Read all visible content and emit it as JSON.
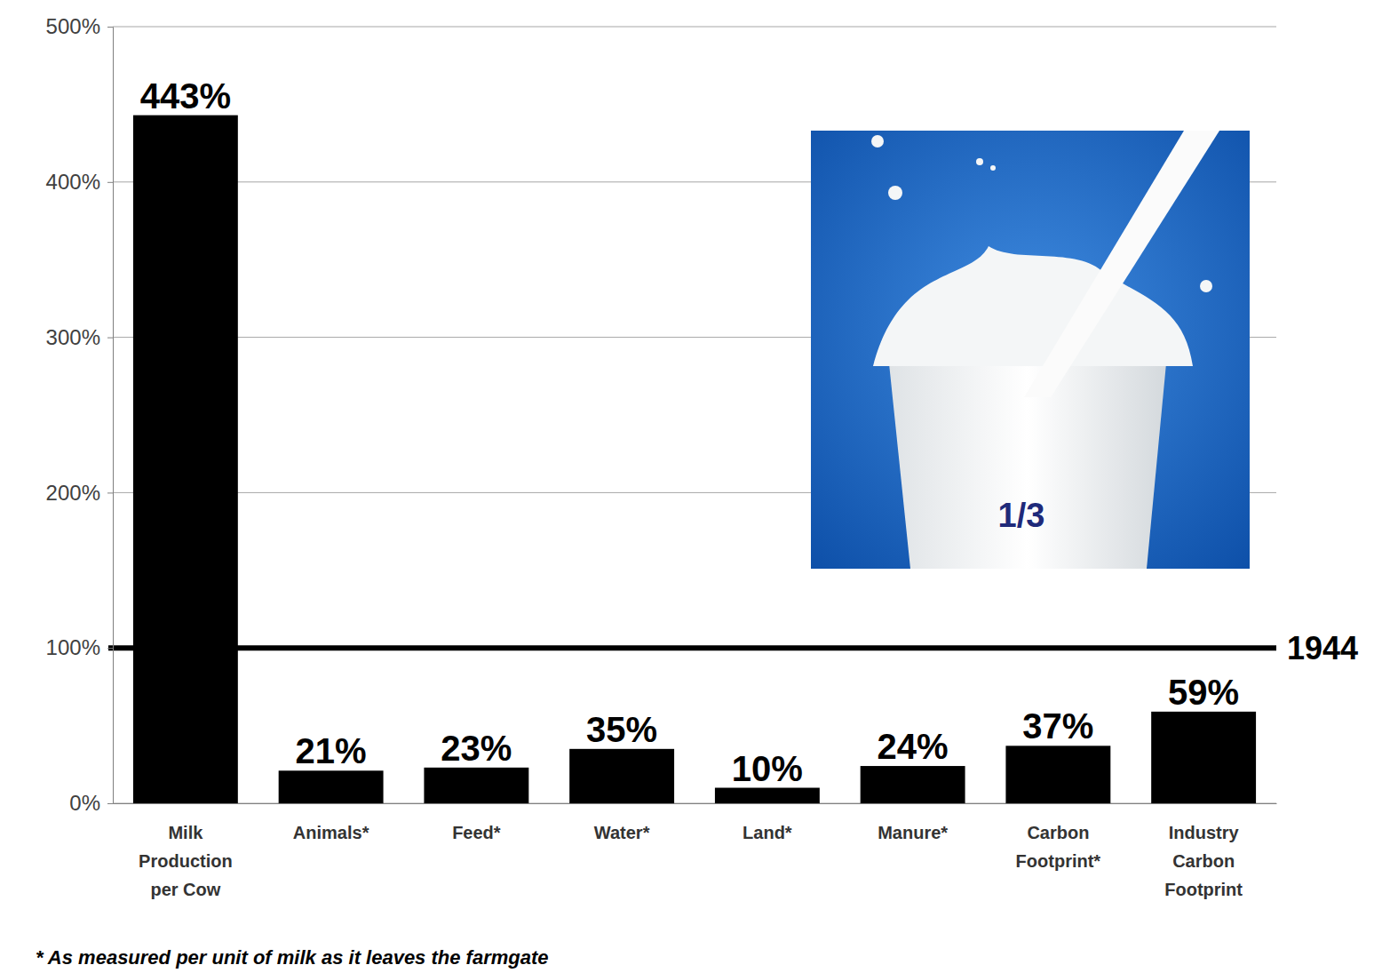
{
  "chart_data": {
    "type": "bar",
    "categories": [
      "Milk Production per Cow",
      "Animals*",
      "Feed*",
      "Water*",
      "Land*",
      "Manure*",
      "Carbon Footprint*",
      "Industry Carbon Footprint"
    ],
    "values": [
      443,
      21,
      23,
      35,
      10,
      24,
      37,
      59
    ],
    "value_labels": [
      "443%",
      "21%",
      "23%",
      "35%",
      "10%",
      "24%",
      "37%",
      "59%"
    ],
    "color": "#000000",
    "ylim": [
      0,
      500
    ],
    "yticks": [
      {
        "value": 0,
        "label": "0%"
      },
      {
        "value": 100,
        "label": "100%"
      },
      {
        "value": 200,
        "label": "200%"
      },
      {
        "value": 300,
        "label": "300%"
      },
      {
        "value": 400,
        "label": "400%"
      },
      {
        "value": 500,
        "label": "500%"
      }
    ],
    "grid": true,
    "data_labels": true,
    "annotations": [
      {
        "text": "1944",
        "y": 100
      },
      {
        "text": "1/3"
      }
    ],
    "footnote": "* As measured per unit of milk as it leaves the farmgate"
  }
}
